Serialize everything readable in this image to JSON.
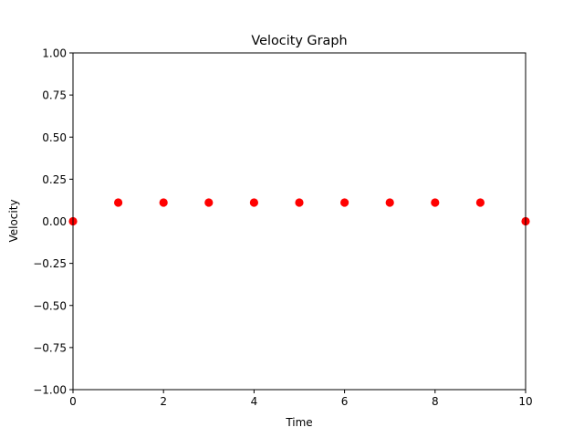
{
  "chart_data": {
    "type": "scatter",
    "title": "Velocity Graph",
    "xlabel": "Time",
    "ylabel": "Velocity",
    "xlim": [
      0,
      10
    ],
    "ylim": [
      -1.0,
      1.0
    ],
    "xticks": [
      0,
      2,
      4,
      6,
      8,
      10
    ],
    "xtick_labels": [
      "0",
      "2",
      "4",
      "6",
      "8",
      "10"
    ],
    "yticks": [
      -1.0,
      -0.75,
      -0.5,
      -0.25,
      0.0,
      0.25,
      0.5,
      0.75,
      1.0
    ],
    "ytick_labels": [
      "−1.00",
      "−0.75",
      "−0.50",
      "−0.25",
      "0.00",
      "0.25",
      "0.50",
      "0.75",
      "1.00"
    ],
    "grid": false,
    "series": [
      {
        "color": "#ff0000",
        "x": [
          0,
          1,
          2,
          3,
          4,
          5,
          6,
          7,
          8,
          9,
          10
        ],
        "y": [
          0.0,
          0.111,
          0.111,
          0.111,
          0.111,
          0.111,
          0.111,
          0.111,
          0.111,
          0.111,
          0.0
        ]
      }
    ]
  }
}
